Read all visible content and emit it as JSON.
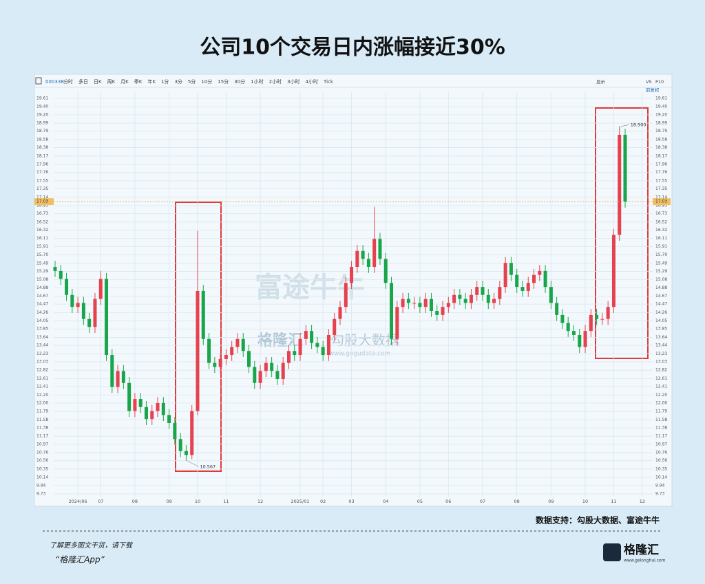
{
  "title": "公司10个交易日内涨幅接近30%",
  "toolbar": {
    "code": "000338",
    "tabs": [
      "分时",
      "多日",
      "日K",
      "周K",
      "月K",
      "季K",
      "年K",
      "1分",
      "3分",
      "5分",
      "10分",
      "15分",
      "30分",
      "1小时",
      "2小时",
      "3小时",
      "4小时",
      "Tick"
    ],
    "right": [
      "显示",
      "VS",
      "P10"
    ],
    "adjust": "前复权"
  },
  "chart_data": {
    "type": "candlestick",
    "categories": [
      null,
      null,
      null,
      null,
      "2024/06",
      null,
      null,
      null,
      "07",
      null,
      null,
      null,
      null,
      null,
      "08",
      null,
      null,
      null,
      null,
      null,
      "09",
      null,
      null,
      null,
      null,
      "10",
      null,
      null,
      null,
      null,
      "11",
      null,
      null,
      null,
      null,
      null,
      "12",
      null,
      null,
      null,
      null,
      null,
      null,
      "2025/01",
      null,
      null,
      null,
      "02",
      null,
      null,
      null,
      null,
      "03",
      null,
      null,
      null,
      null,
      null,
      "04",
      null,
      null,
      null,
      null,
      null,
      "05",
      null,
      null,
      null,
      null,
      "06",
      null,
      null,
      null,
      null,
      null,
      "07",
      null,
      null,
      null,
      null,
      null,
      "08",
      null,
      null,
      null,
      null,
      null,
      "09",
      null,
      null,
      null,
      null,
      null,
      "10",
      null,
      null,
      null,
      null,
      "11",
      null,
      null,
      null,
      null,
      "12"
    ],
    "open": [
      15.4,
      15.3,
      15.1,
      14.7,
      14.4,
      14.5,
      14.1,
      13.9,
      14.6,
      15.1,
      13.2,
      12.4,
      12.8,
      12.5,
      11.8,
      12.1,
      11.9,
      11.6,
      11.8,
      12.0,
      11.7,
      11.5,
      11.1,
      10.8,
      10.7,
      11.8,
      14.8,
      13.6,
      13.0,
      12.9,
      13.1,
      13.2,
      13.4,
      13.6,
      13.3,
      12.9,
      12.5,
      12.8,
      13.0,
      12.8,
      12.6,
      13.0,
      13.3,
      13.2,
      13.6,
      13.8,
      13.5,
      13.4,
      13.2,
      13.7,
      14.1,
      14.4,
      15.0,
      15.4,
      15.8,
      15.6,
      15.4,
      16.1,
      15.6,
      15.0,
      13.6,
      14.4,
      14.6,
      14.5,
      14.5,
      14.4,
      14.6,
      14.3,
      14.2,
      14.4,
      14.5,
      14.7,
      14.6,
      14.5,
      14.7,
      14.9,
      14.7,
      14.5,
      14.6,
      14.9,
      15.5,
      15.2,
      14.9,
      14.8,
      15.0,
      15.2,
      15.3,
      14.9,
      14.5,
      14.2,
      14.0,
      13.8,
      13.7,
      13.4,
      13.8,
      14.2,
      14.1,
      14.1,
      14.4,
      16.2,
      18.7,
      null,
      null,
      null
    ],
    "high": [
      15.55,
      15.45,
      15.25,
      14.85,
      14.65,
      14.65,
      14.25,
      14.75,
      15.3,
      15.25,
      13.35,
      12.95,
      12.95,
      12.65,
      12.25,
      12.25,
      12.05,
      11.95,
      12.15,
      12.15,
      11.85,
      11.65,
      11.25,
      10.95,
      11.95,
      16.3,
      14.95,
      13.75,
      13.15,
      13.25,
      13.35,
      13.55,
      13.75,
      13.75,
      13.45,
      13.05,
      12.95,
      13.15,
      13.15,
      12.95,
      13.15,
      13.45,
      13.45,
      13.75,
      13.95,
      13.95,
      13.65,
      13.55,
      13.85,
      14.25,
      14.55,
      15.15,
      15.55,
      15.95,
      15.95,
      15.75,
      16.9,
      16.25,
      15.75,
      15.15,
      14.55,
      14.75,
      14.75,
      14.65,
      14.65,
      14.75,
      14.75,
      14.45,
      14.55,
      14.65,
      14.85,
      14.85,
      14.75,
      14.85,
      15.05,
      15.05,
      14.85,
      14.75,
      15.05,
      15.65,
      15.65,
      15.35,
      15.05,
      15.15,
      15.35,
      15.45,
      15.45,
      15.05,
      14.65,
      14.35,
      14.15,
      13.95,
      13.85,
      13.95,
      14.35,
      14.35,
      14.25,
      14.55,
      16.35,
      18.9,
      18.85,
      null,
      null,
      null
    ],
    "low": [
      15.15,
      14.95,
      14.55,
      14.25,
      14.25,
      13.95,
      13.75,
      13.75,
      14.45,
      13.05,
      12.25,
      12.25,
      12.35,
      11.65,
      11.65,
      11.75,
      11.45,
      11.45,
      11.65,
      11.55,
      11.35,
      10.95,
      10.65,
      10.567,
      10.6,
      11.7,
      13.45,
      12.85,
      12.75,
      12.75,
      12.95,
      13.05,
      13.25,
      13.15,
      12.75,
      12.35,
      12.35,
      12.65,
      12.65,
      12.45,
      12.45,
      12.85,
      13.05,
      13.05,
      13.45,
      13.35,
      13.25,
      13.05,
      13.05,
      13.55,
      13.95,
      14.25,
      14.85,
      15.25,
      15.45,
      15.25,
      15.25,
      15.45,
      14.85,
      13.45,
      13.45,
      14.25,
      14.35,
      14.35,
      14.25,
      14.25,
      14.15,
      14.05,
      14.05,
      14.25,
      14.35,
      14.45,
      14.35,
      14.35,
      14.55,
      14.55,
      14.35,
      14.35,
      14.45,
      14.75,
      15.05,
      14.75,
      14.65,
      14.65,
      14.85,
      15.05,
      14.75,
      14.35,
      14.05,
      13.85,
      13.65,
      13.55,
      13.25,
      13.25,
      13.65,
      13.95,
      13.95,
      13.95,
      14.25,
      16.05,
      16.88,
      null,
      null,
      null
    ],
    "close": [
      15.3,
      15.1,
      14.7,
      14.4,
      14.5,
      14.1,
      13.9,
      14.6,
      15.1,
      13.2,
      12.4,
      12.8,
      12.5,
      11.8,
      12.1,
      11.9,
      11.6,
      11.8,
      12.0,
      11.7,
      11.5,
      11.1,
      10.8,
      10.7,
      11.8,
      14.8,
      13.6,
      13.0,
      12.9,
      13.1,
      13.2,
      13.4,
      13.6,
      13.3,
      12.9,
      12.5,
      12.8,
      13.0,
      12.8,
      12.6,
      13.0,
      13.3,
      13.2,
      13.6,
      13.8,
      13.5,
      13.4,
      13.2,
      13.7,
      14.1,
      14.4,
      15.0,
      15.4,
      15.8,
      15.6,
      15.4,
      16.1,
      15.6,
      15.0,
      13.6,
      14.4,
      14.6,
      14.5,
      14.5,
      14.4,
      14.6,
      14.3,
      14.2,
      14.4,
      14.5,
      14.7,
      14.6,
      14.5,
      14.7,
      14.9,
      14.7,
      14.5,
      14.6,
      14.9,
      15.5,
      15.2,
      14.9,
      14.8,
      15.0,
      15.2,
      15.3,
      14.9,
      14.5,
      14.2,
      14.0,
      13.8,
      13.7,
      13.4,
      13.8,
      14.2,
      14.1,
      14.1,
      14.4,
      16.2,
      18.7,
      17.03,
      null,
      null,
      null
    ],
    "up_color": "#e5414e",
    "down_color": "#19a64a",
    "ylim": [
      9.73,
      19.61
    ],
    "yticks": [
      19.61,
      {
        "value": 19.4,
        "label": "19.40"
      },
      {
        "value": 19.2,
        "label": "19.20"
      },
      18.99,
      18.79,
      18.58,
      18.38,
      18.17,
      17.96,
      17.76,
      17.55,
      17.35,
      17.14,
      16.93,
      16.73,
      16.52,
      16.32,
      16.11,
      15.91,
      {
        "value": 15.7,
        "label": "15.70"
      },
      15.49,
      15.29,
      15.08,
      14.88,
      14.67,
      14.47,
      14.26,
      14.05,
      13.85,
      13.64,
      13.44,
      13.23,
      13.03,
      12.82,
      12.61,
      12.41,
      {
        "value": 12.2,
        "label": "12.20"
      },
      {
        "value": 12,
        "label": "12.00"
      },
      11.79,
      11.58,
      11.38,
      11.17,
      10.97,
      10.76,
      10.56,
      10.35,
      10.14,
      9.94,
      9.73
    ],
    "last_price": 17.03,
    "annotations": [
      "18.900",
      "10.567"
    ],
    "grid": true
  },
  "watermarks": [
    "富途牛牛",
    "格隆汇",
    "勾股大数据",
    "www.gogudata.com"
  ],
  "source": "数据支持：勾股大数据、富途牛牛",
  "promo": [
    "了解更多图文干货，请下载",
    "“格隆汇App”"
  ],
  "logo": "格隆汇",
  "logo_url": "www.gelonghui.com"
}
